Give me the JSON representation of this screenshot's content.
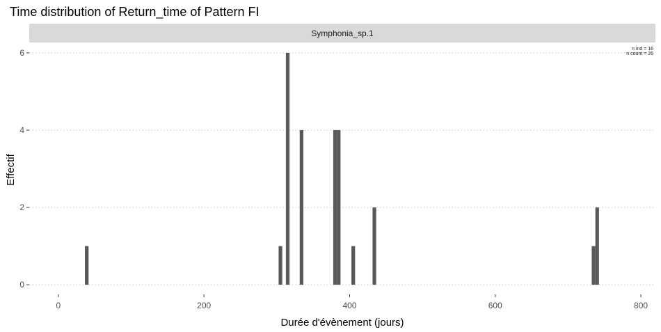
{
  "chart_data": {
    "type": "bar",
    "title": "Time distribution of Return_time of Pattern FI",
    "facet_label": "Symphonia_sp.1",
    "xlabel": "Durée d'évènement (jours)",
    "ylabel": "Effectif",
    "xlim": [
      -40,
      820
    ],
    "ylim": [
      -0.25,
      6.25
    ],
    "x_ticks": [
      0,
      200,
      400,
      600,
      800
    ],
    "y_ticks": [
      0,
      2,
      4,
      6
    ],
    "bin_width": 5,
    "grid": "horizontal-dotted",
    "annotation": {
      "n_ind": "n ind =  16",
      "n_count": "n count =  26"
    },
    "bars": [
      {
        "x": 39,
        "count": 1
      },
      {
        "x": 305,
        "count": 1
      },
      {
        "x": 315,
        "count": 6
      },
      {
        "x": 334,
        "count": 4
      },
      {
        "x": 380,
        "count": 4
      },
      {
        "x": 385,
        "count": 4
      },
      {
        "x": 405,
        "count": 1
      },
      {
        "x": 434,
        "count": 2
      },
      {
        "x": 735,
        "count": 1
      },
      {
        "x": 740,
        "count": 2
      }
    ],
    "bar_color": "#595959"
  }
}
